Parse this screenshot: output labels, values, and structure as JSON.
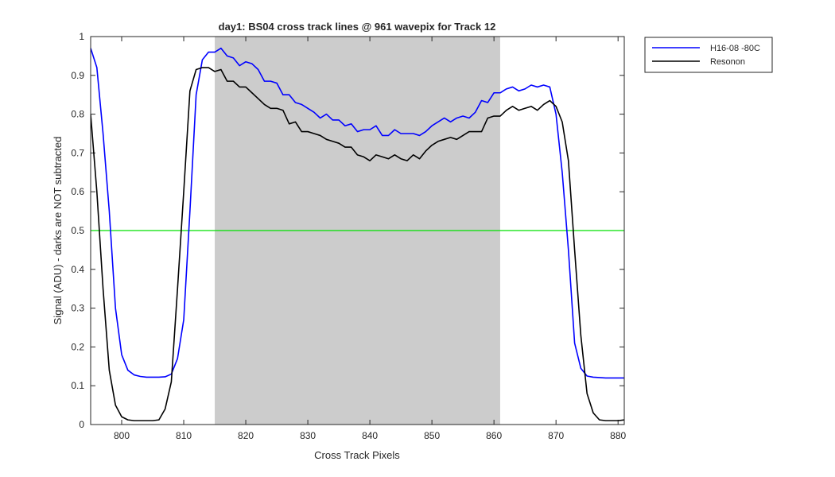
{
  "chart_data": {
    "type": "line",
    "title": "day1: BS04  cross track lines @ 961 wavepix for Track 12",
    "xlabel": "Cross Track Pixels",
    "ylabel": "Signal (ADU) - darks are NOT subtracted",
    "xlim": [
      795,
      881
    ],
    "ylim": [
      0,
      1
    ],
    "xticks": [
      800,
      810,
      820,
      830,
      840,
      850,
      860,
      870,
      880
    ],
    "yticks": [
      0,
      0.1,
      0.2,
      0.3,
      0.4,
      0.5,
      0.6,
      0.7,
      0.8,
      0.9,
      1
    ],
    "xtick_labels": [
      "800",
      "810",
      "820",
      "830",
      "840",
      "850",
      "860",
      "870",
      "880"
    ],
    "ytick_labels": [
      "0",
      "0.1",
      "0.2",
      "0.3",
      "0.4",
      "0.5",
      "0.6",
      "0.7",
      "0.8",
      "0.9",
      "1"
    ],
    "legend_position": "outside-top-right",
    "shaded_region": {
      "x_start": 815,
      "x_end": 861,
      "color": "#cccccc"
    },
    "reference_line": {
      "y": 0.5,
      "color": "#00e000"
    },
    "x": [
      795,
      796,
      797,
      798,
      799,
      800,
      801,
      802,
      803,
      804,
      805,
      806,
      807,
      808,
      809,
      810,
      811,
      812,
      813,
      814,
      815,
      816,
      817,
      818,
      819,
      820,
      821,
      822,
      823,
      824,
      825,
      826,
      827,
      828,
      829,
      830,
      831,
      832,
      833,
      834,
      835,
      836,
      837,
      838,
      839,
      840,
      841,
      842,
      843,
      844,
      845,
      846,
      847,
      848,
      849,
      850,
      851,
      852,
      853,
      854,
      855,
      856,
      857,
      858,
      859,
      860,
      861,
      862,
      863,
      864,
      865,
      866,
      867,
      868,
      869,
      870,
      871,
      872,
      873,
      874,
      875,
      876,
      877,
      878,
      879,
      880,
      881
    ],
    "series": [
      {
        "name": "H16-08 -80C",
        "color": "#0000ff",
        "values": [
          0.97,
          0.92,
          0.75,
          0.55,
          0.3,
          0.18,
          0.14,
          0.128,
          0.124,
          0.122,
          0.122,
          0.122,
          0.123,
          0.13,
          0.17,
          0.27,
          0.55,
          0.85,
          0.94,
          0.96,
          0.96,
          0.97,
          0.95,
          0.945,
          0.925,
          0.935,
          0.93,
          0.915,
          0.885,
          0.885,
          0.88,
          0.85,
          0.85,
          0.83,
          0.825,
          0.815,
          0.805,
          0.79,
          0.8,
          0.785,
          0.785,
          0.77,
          0.775,
          0.755,
          0.76,
          0.76,
          0.77,
          0.745,
          0.745,
          0.76,
          0.75,
          0.75,
          0.75,
          0.745,
          0.755,
          0.77,
          0.78,
          0.79,
          0.78,
          0.79,
          0.795,
          0.79,
          0.805,
          0.835,
          0.83,
          0.855,
          0.855,
          0.865,
          0.87,
          0.86,
          0.865,
          0.875,
          0.87,
          0.875,
          0.87,
          0.8,
          0.65,
          0.45,
          0.21,
          0.145,
          0.125,
          0.122,
          0.121,
          0.12,
          0.12,
          0.12,
          0.12
        ]
      },
      {
        "name": "Resonon",
        "color": "#000000",
        "values": [
          0.8,
          0.6,
          0.35,
          0.14,
          0.05,
          0.02,
          0.012,
          0.01,
          0.01,
          0.01,
          0.01,
          0.012,
          0.04,
          0.11,
          0.35,
          0.6,
          0.86,
          0.915,
          0.92,
          0.92,
          0.91,
          0.915,
          0.885,
          0.885,
          0.87,
          0.87,
          0.855,
          0.84,
          0.825,
          0.815,
          0.815,
          0.81,
          0.775,
          0.78,
          0.755,
          0.755,
          0.75,
          0.745,
          0.735,
          0.73,
          0.725,
          0.715,
          0.715,
          0.695,
          0.69,
          0.68,
          0.695,
          0.69,
          0.685,
          0.695,
          0.685,
          0.68,
          0.695,
          0.685,
          0.705,
          0.72,
          0.73,
          0.735,
          0.74,
          0.735,
          0.745,
          0.755,
          0.755,
          0.755,
          0.79,
          0.795,
          0.795,
          0.81,
          0.82,
          0.81,
          0.815,
          0.82,
          0.81,
          0.825,
          0.835,
          0.82,
          0.78,
          0.68,
          0.45,
          0.23,
          0.08,
          0.03,
          0.012,
          0.01,
          0.01,
          0.01,
          0.012
        ]
      }
    ]
  }
}
